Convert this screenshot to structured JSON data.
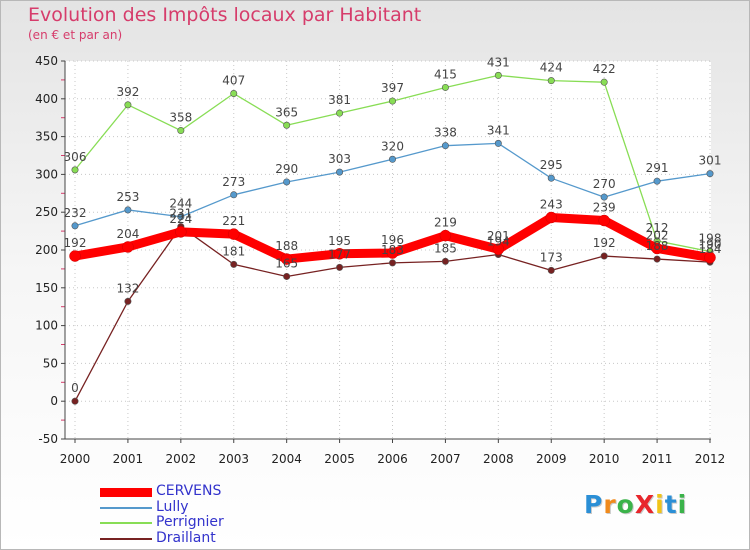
{
  "chart_data": {
    "type": "line",
    "title": "Evolution des Impôts locaux par Habitant",
    "subtitle": "(en € et par an)",
    "x": [
      "2000",
      "2001",
      "2002",
      "2003",
      "2004",
      "2005",
      "2006",
      "2007",
      "2008",
      "2009",
      "2010",
      "2011",
      "2012"
    ],
    "ylim": [
      -50,
      450
    ],
    "yticks": [
      -50,
      0,
      50,
      100,
      150,
      200,
      250,
      300,
      350,
      400,
      450
    ],
    "grid": true,
    "legend_position": "bottom-left",
    "series": [
      {
        "name": "CERVENS",
        "color": "#ff0000",
        "values": [
          192,
          204,
          224,
          221,
          188,
          195,
          196,
          219,
          201,
          243,
          239,
          202,
          190
        ],
        "labels": [
          "192",
          "204",
          "224",
          "221",
          "188",
          "195",
          "196",
          "219",
          "201",
          "243",
          "239",
          "202",
          "190"
        ]
      },
      {
        "name": "Lully",
        "color": "#5599cc",
        "values": [
          232,
          253,
          244,
          273,
          290,
          303,
          320,
          338,
          341,
          295,
          270,
          291,
          301
        ],
        "labels": [
          "232",
          "253",
          "244",
          "273",
          "290",
          "303",
          "320",
          "338",
          "341",
          "295",
          "270",
          "291",
          "301"
        ]
      },
      {
        "name": "Perrignier",
        "color": "#88dd55",
        "values": [
          306,
          392,
          358,
          407,
          365,
          381,
          397,
          415,
          431,
          424,
          422,
          212,
          198
        ],
        "labels": [
          "306",
          "392",
          "358",
          "407",
          "365",
          "381",
          "397",
          "415",
          "431",
          "424",
          "422",
          "212",
          "198"
        ]
      },
      {
        "name": "Draillant",
        "color": "#772222",
        "values": [
          0,
          132,
          231,
          181,
          165,
          177,
          183,
          185,
          194,
          173,
          192,
          188,
          184
        ],
        "labels": [
          "0",
          "132",
          "231",
          "181",
          "165",
          "177",
          "183",
          "185",
          "194",
          "173",
          "192",
          "188",
          "184"
        ]
      }
    ]
  },
  "logo": {
    "text": "ProXiti",
    "colors": [
      "#2b8fd6",
      "#f08a1c",
      "#3bb34a",
      "#e8262c",
      "#f0c419",
      "#2b8fd6",
      "#3bb34a"
    ]
  }
}
